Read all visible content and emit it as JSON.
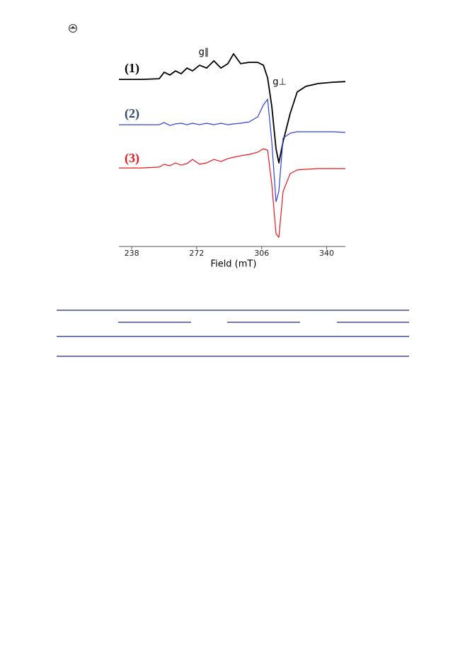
{
  "chart_data": {
    "type": "line",
    "xlabel": "Field (mT)",
    "annotations": [
      "g∥",
      "g⊥"
    ],
    "xlim": [
      231.3,
      349.8
    ],
    "xticks": [
      238,
      272,
      306,
      340
    ],
    "ylim": [
      0,
      100
    ],
    "x": [
      231.3,
      243.2,
      252.4,
      255.0,
      258.0,
      260.9,
      263.9,
      266.9,
      269.8,
      273.5,
      277.2,
      281.0,
      284.7,
      288.3,
      291.3,
      295.0,
      299.4,
      303.9,
      306.9,
      309.1,
      311.3,
      313.5,
      315.0,
      317.2,
      320.9,
      324.6,
      329.1,
      335.7,
      343.1,
      349.8
    ],
    "series": [
      {
        "name": "(1)",
        "color": "#000000",
        "values": [
          76.6,
          76.6,
          76.9,
          79.9,
          78.6,
          80.5,
          79.2,
          81.8,
          80.5,
          83.1,
          81.8,
          85.1,
          81.8,
          83.8,
          88.3,
          83.8,
          84.4,
          84.4,
          83.1,
          77.3,
          64.3,
          44.8,
          38.3,
          48.1,
          61.0,
          70.8,
          73.4,
          74.7,
          75.3,
          75.6
        ]
      },
      {
        "name": "(2)",
        "color": "#2f3fe0",
        "values": [
          55.8,
          55.8,
          55.8,
          56.8,
          55.5,
          56.2,
          56.5,
          55.8,
          56.5,
          55.8,
          56.5,
          55.8,
          56.5,
          55.8,
          56.2,
          56.5,
          57.1,
          59.4,
          64.9,
          67.5,
          48.1,
          20.5,
          25.3,
          49.7,
          51.9,
          52.6,
          52.6,
          52.6,
          52.6,
          52.3
        ]
      },
      {
        "name": "(3)",
        "color": "#e8151b",
        "values": [
          36.0,
          36.0,
          36.4,
          37.7,
          37.0,
          38.3,
          37.3,
          38.0,
          39.9,
          37.7,
          38.3,
          39.9,
          39.0,
          40.3,
          40.9,
          41.6,
          42.2,
          43.2,
          44.8,
          44.2,
          28.6,
          5.8,
          4.2,
          25.3,
          33.4,
          35.1,
          35.4,
          35.7,
          35.7,
          35.7
        ]
      }
    ]
  }
}
